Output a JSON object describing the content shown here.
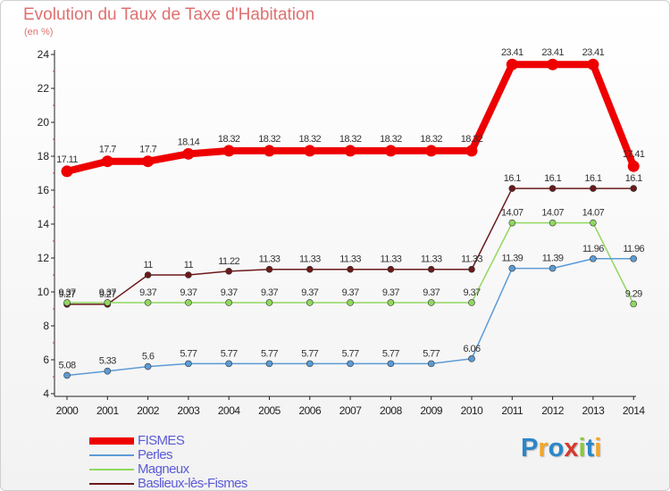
{
  "title": "Evolution du Taux de Taxe d'Habitation",
  "subtitle": "(en %)",
  "logo": {
    "text": "Proxiti",
    "letter_colors": [
      "#2b86c9",
      "#f0a62a",
      "#2b86c9",
      "#d63a2f",
      "#8cc63f",
      "#2b86c9",
      "#f0a62a"
    ]
  },
  "chart_data": {
    "type": "line",
    "x": [
      "2000",
      "2001",
      "2002",
      "2003",
      "2004",
      "2005",
      "2006",
      "2007",
      "2008",
      "2009",
      "2010",
      "2011",
      "2012",
      "2013",
      "2014"
    ],
    "ylim": [
      4,
      24
    ],
    "yticks": [
      "4",
      "6",
      "8",
      "10",
      "12",
      "14",
      "16",
      "18",
      "20",
      "22",
      "24"
    ],
    "grid": false,
    "legend_position": "bottom-left",
    "series": [
      {
        "name": "Baslieux-lès-Fismes",
        "color": "#6b1a1a",
        "values": [
          9.27,
          9.27,
          11,
          11,
          11.22,
          11.33,
          11.33,
          11.33,
          11.33,
          11.33,
          11.33,
          16.1,
          16.1,
          16.1,
          16.1
        ],
        "labels": [
          "9.27",
          "9.27",
          "11",
          "11",
          "11.22",
          "11.33",
          "11.33",
          "11.33",
          "11.33",
          "11.33",
          "11.33",
          "16.1",
          "16.1",
          "16.1",
          "16.1"
        ]
      },
      {
        "name": "Magneux",
        "color": "#90d860",
        "values": [
          9.37,
          9.37,
          9.37,
          9.37,
          9.37,
          9.37,
          9.37,
          9.37,
          9.37,
          9.37,
          9.37,
          14.07,
          14.07,
          14.07,
          9.29
        ],
        "labels": [
          "9.37",
          "9.37",
          "9.37",
          "9.37",
          "9.37",
          "9.37",
          "9.37",
          "9.37",
          "9.37",
          "9.37",
          "9.37",
          "14.07",
          "14.07",
          "14.07",
          "9.29"
        ]
      },
      {
        "name": "Perles",
        "color": "#5b9bd5",
        "values": [
          5.08,
          5.33,
          5.6,
          5.77,
          5.77,
          5.77,
          5.77,
          5.77,
          5.77,
          5.77,
          6.06,
          11.39,
          11.39,
          11.96,
          11.96
        ],
        "labels": [
          "5.08",
          "5.33",
          "5.6",
          "5.77",
          "5.77",
          "5.77",
          "5.77",
          "5.77",
          "5.77",
          "5.77",
          "6.06",
          "11.39",
          "11.39",
          "11.96",
          "11.96"
        ]
      },
      {
        "name": "FISMES",
        "color": "#ee0000",
        "values": [
          17.11,
          17.7,
          17.7,
          18.14,
          18.32,
          18.32,
          18.32,
          18.32,
          18.32,
          18.32,
          18.32,
          23.41,
          23.41,
          23.41,
          17.41
        ],
        "labels": [
          "17.11",
          "17.7",
          "17.7",
          "18.14",
          "18.32",
          "18.32",
          "18.32",
          "18.32",
          "18.32",
          "18.32",
          "18.32",
          "23.41",
          "23.41",
          "23.41",
          "17.41"
        ]
      }
    ],
    "legend": [
      {
        "name": "FISMES",
        "color": "#ee0000",
        "thick": true
      },
      {
        "name": "Perles",
        "color": "#5b9bd5",
        "thick": false
      },
      {
        "name": "Magneux",
        "color": "#90d860",
        "thick": false
      },
      {
        "name": "Baslieux-lès-Fismes",
        "color": "#6b1a1a",
        "thick": false
      }
    ]
  }
}
